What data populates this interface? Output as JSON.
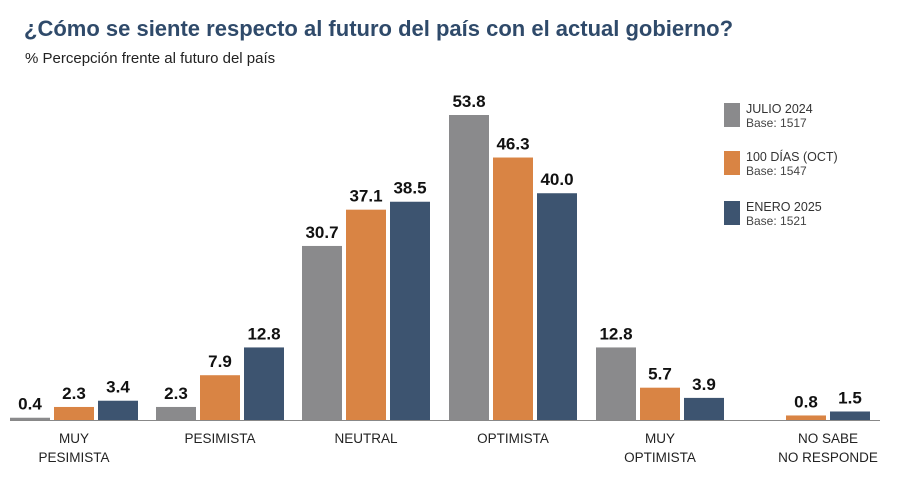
{
  "chart_data": {
    "type": "bar",
    "title": "¿Cómo se siente respecto al futuro del país con el actual gobierno?",
    "subtitle": "% Percepción frente al futuro del país",
    "categories": [
      [
        "MUY",
        "PESIMISTA"
      ],
      [
        "PESIMISTA"
      ],
      [
        "NEUTRAL"
      ],
      [
        "OPTIMISTA"
      ],
      [
        "MUY",
        "OPTIMISTA"
      ],
      [
        "NO SABE",
        "NO RESPONDE"
      ]
    ],
    "series": [
      {
        "name": "JULIO 2024",
        "base": "Base: 1517",
        "color": "#8a8a8c",
        "values": [
          0.4,
          2.3,
          30.7,
          53.8,
          12.8,
          null
        ],
        "labels": [
          "0.4",
          "2.3",
          "30.7",
          "53.8",
          "12.8",
          ""
        ]
      },
      {
        "name": "100 DÍAS (OCT)",
        "base": "Base: 1547",
        "color": "#d98444",
        "values": [
          2.3,
          7.9,
          37.1,
          46.3,
          5.7,
          0.8
        ],
        "labels": [
          "2.3",
          "7.9",
          "37.1",
          "46.3",
          "5.7",
          "0.8"
        ]
      },
      {
        "name": "ENERO 2025",
        "base": "Base: 1521",
        "color": "#3d5470",
        "values": [
          3.4,
          12.8,
          38.5,
          40.0,
          3.9,
          1.5
        ],
        "labels": [
          "3.4",
          "12.8",
          "38.5",
          "40.0",
          "3.9",
          "1.5"
        ]
      }
    ],
    "ylim": [
      0,
      56
    ],
    "legend": "right"
  }
}
